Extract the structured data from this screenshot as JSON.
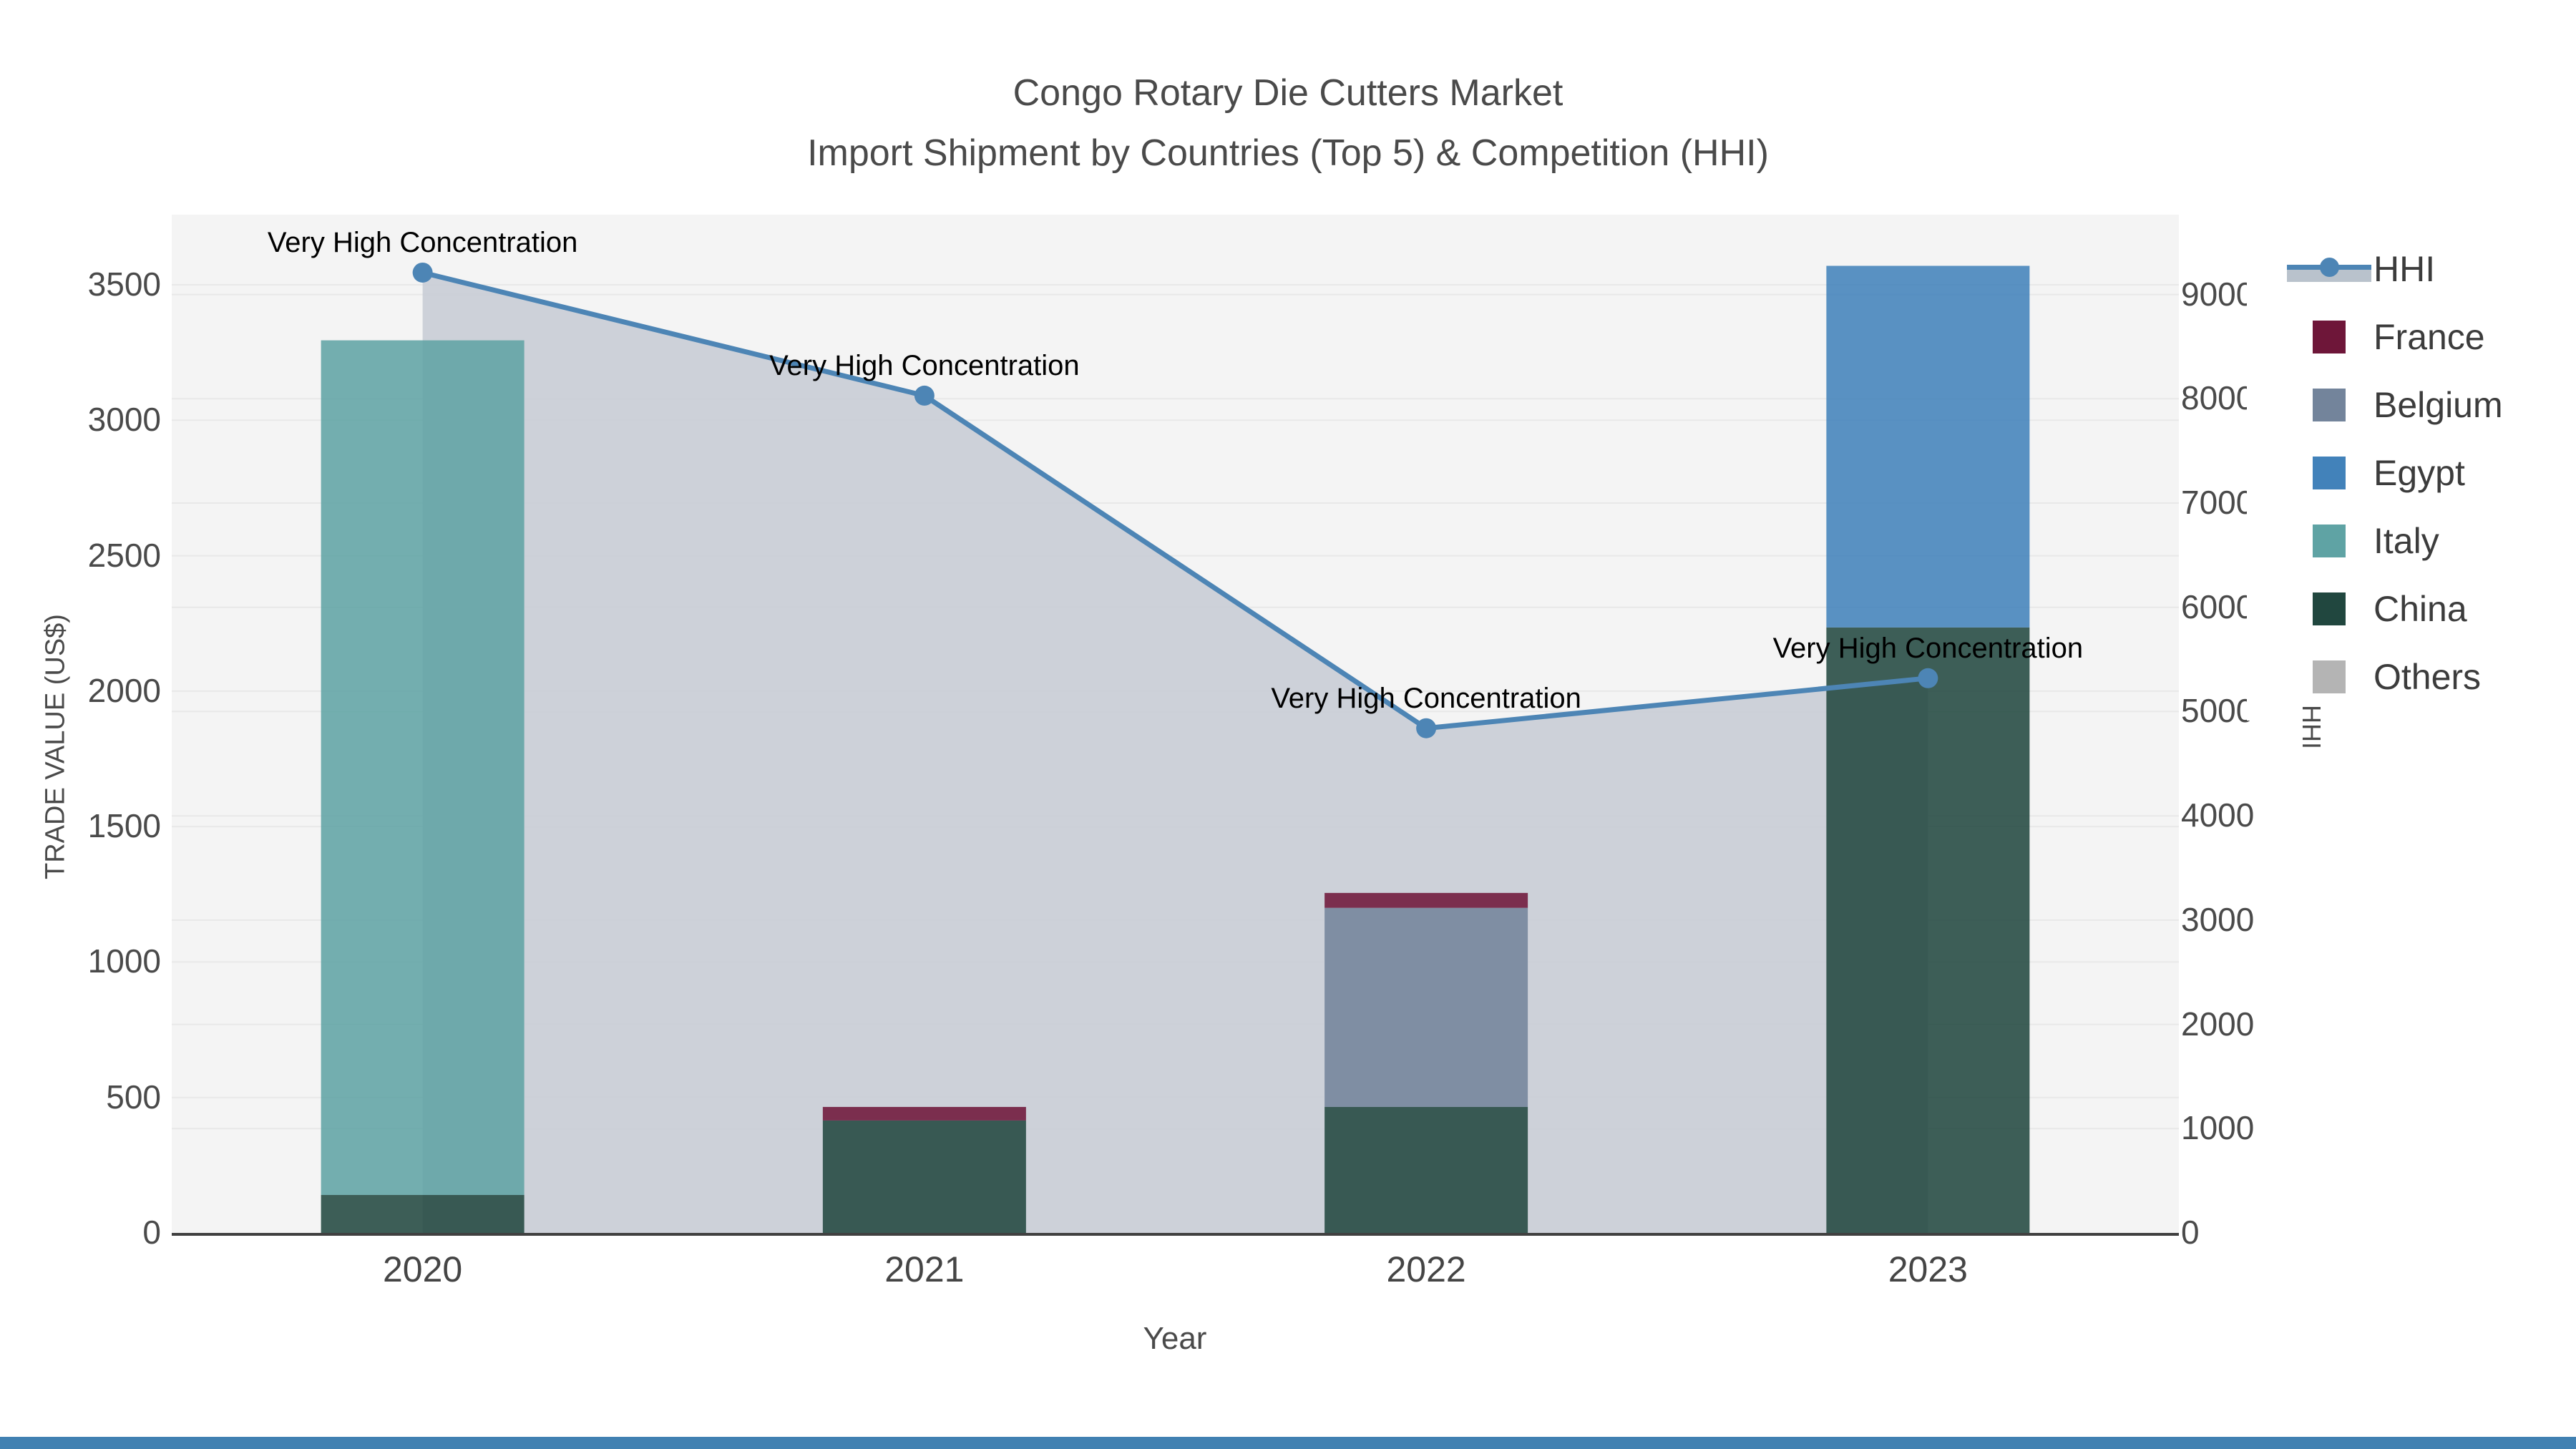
{
  "figure": {
    "title_line1": "Congo Rotary Die Cutters Market",
    "title_line2": "Import Shipment by Countries (Top 5) & Competition (HHI)",
    "background": "#ffffff",
    "plot_background": "#f4f4f4",
    "gridline_color": "#e8e8e8",
    "axis_line_color": "#404040",
    "bottom_strip_color": "#4181b2"
  },
  "chart_data": {
    "type": "combo: stacked-bar (left axis) + line-area (right axis)",
    "categories": [
      "2020",
      "2021",
      "2022",
      "2023"
    ],
    "xlabel": "Year",
    "ylabel_left": "TRADE VALUE (US$)",
    "ylabel_right": "HHI",
    "left_axis": {
      "min": 0,
      "max": 3760,
      "ticks": [
        0,
        500,
        1000,
        1500,
        2000,
        2500,
        3000,
        3500
      ]
    },
    "right_axis": {
      "min": 0,
      "max": 9770,
      "ticks": [
        0,
        1000,
        2000,
        3000,
        4000,
        5000,
        6000,
        7000,
        8000,
        9000
      ]
    },
    "grid": true,
    "bar_stack_order_bottom_to_top": [
      "Others",
      "China",
      "Italy",
      "Egypt",
      "Belgium",
      "France"
    ],
    "bar_series": [
      {
        "name": "Others",
        "color": "#b4b4b4",
        "values": [
          0,
          0,
          0,
          0
        ]
      },
      {
        "name": "China",
        "color": "#21473f",
        "values": [
          140,
          415,
          465,
          2235
        ]
      },
      {
        "name": "Italy",
        "color": "#5fa3a4",
        "values": [
          3155,
          0,
          0,
          0
        ]
      },
      {
        "name": "Egypt",
        "color": "#4282ba",
        "values": [
          0,
          0,
          0,
          1335
        ]
      },
      {
        "name": "Belgium",
        "color": "#73849b",
        "values": [
          0,
          0,
          735,
          0
        ]
      },
      {
        "name": "France",
        "color": "#6e1639",
        "values": [
          0,
          50,
          55,
          0
        ]
      }
    ],
    "line_series": {
      "name": "HHI",
      "axis": "right",
      "color": "#4d85b5",
      "area_color": "#c9ced6",
      "values": [
        9210,
        8030,
        4840,
        5320
      ]
    },
    "annotations": [
      {
        "category": "2020",
        "text": "Very High Concentration"
      },
      {
        "category": "2021",
        "text": "Very High Concentration"
      },
      {
        "category": "2022",
        "text": "Very High Concentration"
      },
      {
        "category": "2023",
        "text": "Very High Concentration"
      }
    ],
    "legend": {
      "position": "right",
      "entries": [
        {
          "label": "HHI",
          "type": "line-area",
          "color": "#4d85b5",
          "band_color": "#b9c2cc"
        },
        {
          "label": "France",
          "type": "swatch",
          "color": "#6e1639"
        },
        {
          "label": "Belgium",
          "type": "swatch",
          "color": "#73849b"
        },
        {
          "label": "Egypt",
          "type": "swatch",
          "color": "#4282ba"
        },
        {
          "label": "Italy",
          "type": "swatch",
          "color": "#5fa3a4"
        },
        {
          "label": "China",
          "type": "swatch",
          "color": "#21473f"
        },
        {
          "label": "Others",
          "type": "swatch",
          "color": "#b4b4b4"
        }
      ]
    }
  }
}
